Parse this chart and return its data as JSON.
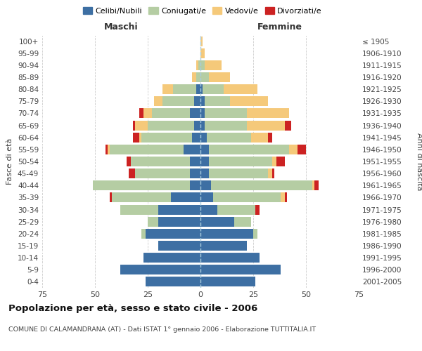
{
  "age_groups": [
    "0-4",
    "5-9",
    "10-14",
    "15-19",
    "20-24",
    "25-29",
    "30-34",
    "35-39",
    "40-44",
    "45-49",
    "50-54",
    "55-59",
    "60-64",
    "65-69",
    "70-74",
    "75-79",
    "80-84",
    "85-89",
    "90-94",
    "95-99",
    "100+"
  ],
  "birth_years": [
    "2001-2005",
    "1996-2000",
    "1991-1995",
    "1986-1990",
    "1981-1985",
    "1976-1980",
    "1971-1975",
    "1966-1970",
    "1961-1965",
    "1956-1960",
    "1951-1955",
    "1946-1950",
    "1941-1945",
    "1936-1940",
    "1931-1935",
    "1926-1930",
    "1921-1925",
    "1916-1920",
    "1911-1915",
    "1906-1910",
    "≤ 1905"
  ],
  "maschi": {
    "celibi": [
      26,
      38,
      27,
      20,
      26,
      20,
      20,
      14,
      5,
      5,
      5,
      8,
      4,
      3,
      5,
      3,
      2,
      0,
      0,
      0,
      0
    ],
    "coniugati": [
      0,
      0,
      0,
      0,
      2,
      5,
      18,
      28,
      46,
      26,
      28,
      35,
      24,
      22,
      18,
      15,
      11,
      2,
      1,
      0,
      0
    ],
    "vedovi": [
      0,
      0,
      0,
      0,
      0,
      0,
      0,
      0,
      0,
      0,
      0,
      1,
      1,
      6,
      4,
      4,
      5,
      2,
      1,
      0,
      0
    ],
    "divorziati": [
      0,
      0,
      0,
      0,
      0,
      0,
      0,
      1,
      0,
      3,
      2,
      1,
      3,
      1,
      2,
      0,
      0,
      0,
      0,
      0,
      0
    ]
  },
  "femmine": {
    "nubili": [
      26,
      38,
      28,
      22,
      25,
      16,
      8,
      6,
      5,
      4,
      4,
      4,
      3,
      2,
      2,
      2,
      1,
      0,
      0,
      0,
      0
    ],
    "coniugate": [
      0,
      0,
      0,
      0,
      2,
      8,
      18,
      32,
      48,
      28,
      30,
      38,
      21,
      20,
      20,
      12,
      10,
      4,
      2,
      0,
      0
    ],
    "vedove": [
      0,
      0,
      0,
      0,
      0,
      0,
      0,
      2,
      1,
      2,
      2,
      4,
      8,
      18,
      20,
      18,
      16,
      10,
      8,
      2,
      1
    ],
    "divorziate": [
      0,
      0,
      0,
      0,
      0,
      0,
      2,
      1,
      2,
      1,
      4,
      4,
      2,
      3,
      0,
      0,
      0,
      0,
      0,
      0,
      0
    ]
  },
  "colors": {
    "celibi": "#3d6fa3",
    "coniugati": "#b5cda3",
    "vedovi": "#f5c97a",
    "divorziati": "#cc2222"
  },
  "xlim": 75,
  "title": "Popolazione per età, sesso e stato civile - 2006",
  "subtitle": "COMUNE DI CALAMANDRANA (AT) - Dati ISTAT 1° gennaio 2006 - Elaborazione TUTTITALIA.IT",
  "ylabel_left": "Fasce di età",
  "ylabel_right": "Anni di nascita",
  "xlabel_left": "Maschi",
  "xlabel_right": "Femmine"
}
